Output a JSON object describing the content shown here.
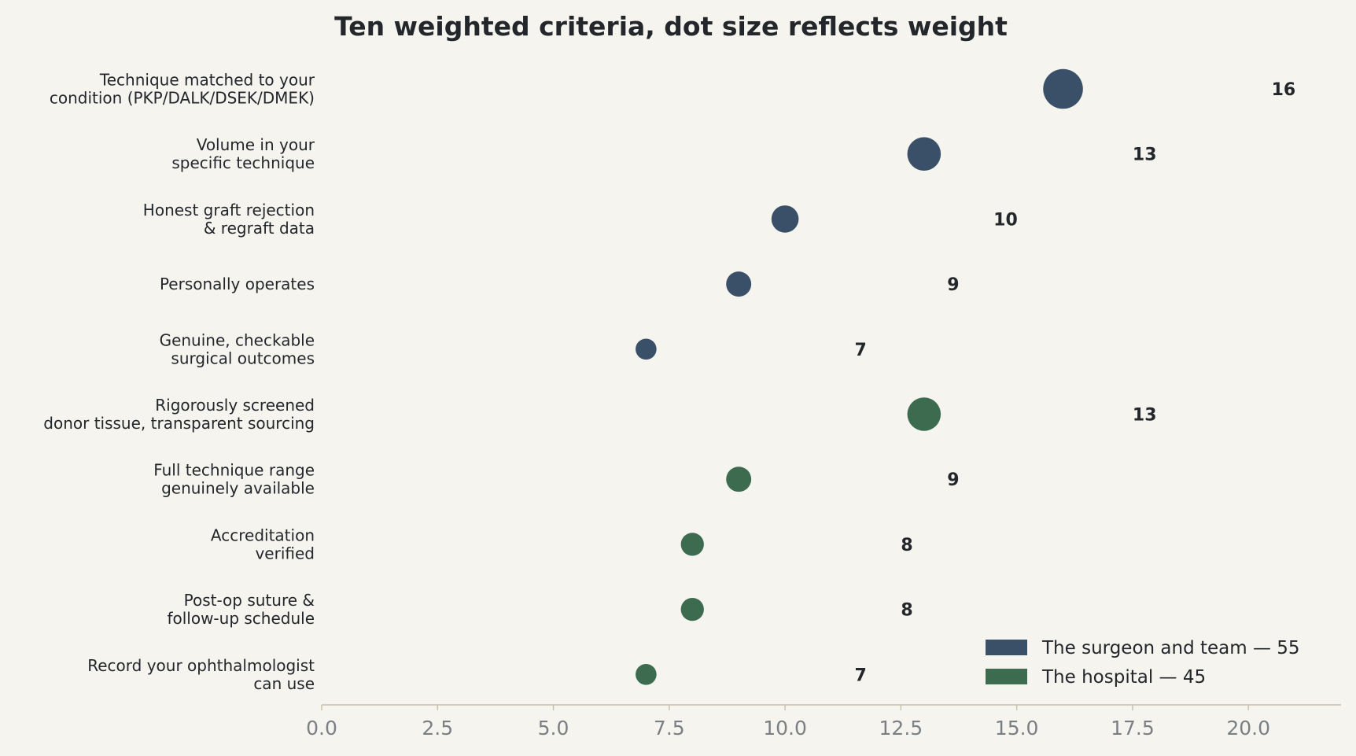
{
  "chart_data": {
    "type": "scatter",
    "title": "Ten weighted criteria, dot size reflects weight",
    "xlabel": "",
    "ylabel": "",
    "xlim": [
      0,
      22
    ],
    "x_ticks": [
      "0.0",
      "2.5",
      "5.0",
      "7.5",
      "10.0",
      "12.5",
      "15.0",
      "17.5",
      "20.0"
    ],
    "x_tick_values": [
      0,
      2.5,
      5,
      7.5,
      10,
      12.5,
      15,
      17.5,
      20
    ],
    "grid": false,
    "legend_position": "bottom-right",
    "colors": {
      "surgeon": "#3a5068",
      "hospital": "#3d6b4f",
      "axis": "#c8bfa8",
      "background": "#f5f4ef"
    },
    "series": [
      {
        "name": "The surgeon and team — 55",
        "key": "surgeon"
      },
      {
        "name": "The hospital — 45",
        "key": "hospital"
      }
    ],
    "points": [
      {
        "label": [
          "Technique matched to your",
          "condition (PKP/DALK/DSEK/DMEK)"
        ],
        "value": 16,
        "value_label": "16",
        "series": "surgeon"
      },
      {
        "label": [
          "Volume in your",
          "specific technique"
        ],
        "value": 13,
        "value_label": "13",
        "series": "surgeon"
      },
      {
        "label": [
          "Honest graft rejection",
          "& regraft data"
        ],
        "value": 10,
        "value_label": "10",
        "series": "surgeon"
      },
      {
        "label": [
          "Personally operates"
        ],
        "value": 9,
        "value_label": "9",
        "series": "surgeon"
      },
      {
        "label": [
          "Genuine, checkable",
          "surgical outcomes"
        ],
        "value": 7,
        "value_label": "7",
        "series": "surgeon"
      },
      {
        "label": [
          "Rigorously screened",
          "donor tissue, transparent sourcing"
        ],
        "value": 13,
        "value_label": "13",
        "series": "hospital"
      },
      {
        "label": [
          "Full technique range",
          "genuinely available"
        ],
        "value": 9,
        "value_label": "9",
        "series": "hospital"
      },
      {
        "label": [
          "Accreditation",
          "verified"
        ],
        "value": 8,
        "value_label": "8",
        "series": "hospital"
      },
      {
        "label": [
          "Post-op suture &",
          "follow-up schedule"
        ],
        "value": 8,
        "value_label": "8",
        "series": "hospital"
      },
      {
        "label": [
          "Record your ophthalmologist",
          "can use"
        ],
        "value": 7,
        "value_label": "7",
        "series": "hospital"
      }
    ]
  }
}
